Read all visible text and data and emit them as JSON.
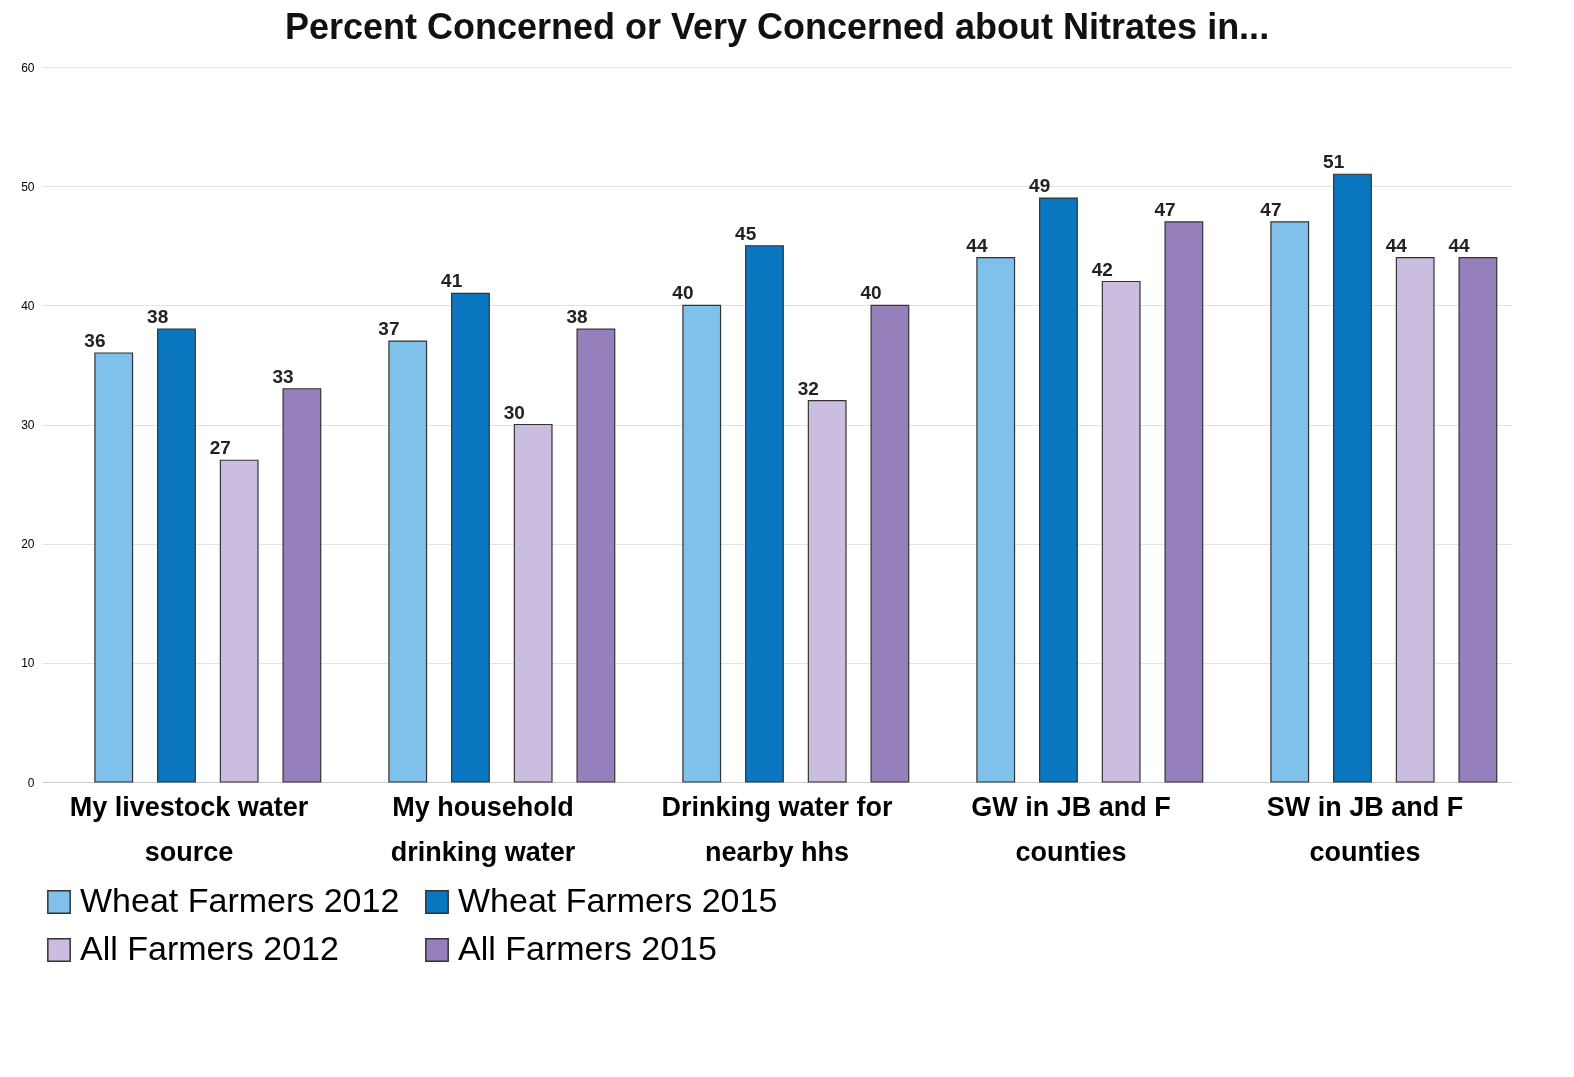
{
  "chart_data": {
    "type": "bar",
    "title": "Percent Concerned or Very Concerned about Nitrates in...",
    "categories": [
      "My livestock water source",
      "My household drinking water",
      "Drinking water for nearby hhs",
      "GW in JB and F counties",
      "SW in JB and F counties"
    ],
    "series": [
      {
        "name": "Wheat Farmers 2012",
        "color": "#7fc1ea",
        "values": [
          36,
          37,
          40,
          44,
          47
        ]
      },
      {
        "name": "Wheat Farmers 2015",
        "color": "#0a77c0",
        "values": [
          38,
          41,
          45,
          49,
          51
        ]
      },
      {
        "name": "All Farmers 2012",
        "color": "#cbbde0",
        "values": [
          27,
          30,
          32,
          42,
          44
        ]
      },
      {
        "name": "All Farmers 2015",
        "color": "#9680bb",
        "values": [
          33,
          38,
          40,
          47,
          44
        ]
      }
    ],
    "ylim": [
      0,
      60
    ],
    "yticks": [
      0,
      10,
      20,
      30,
      40,
      50,
      60
    ],
    "grid": "y",
    "legend": "bottom",
    "data_labels": true
  }
}
